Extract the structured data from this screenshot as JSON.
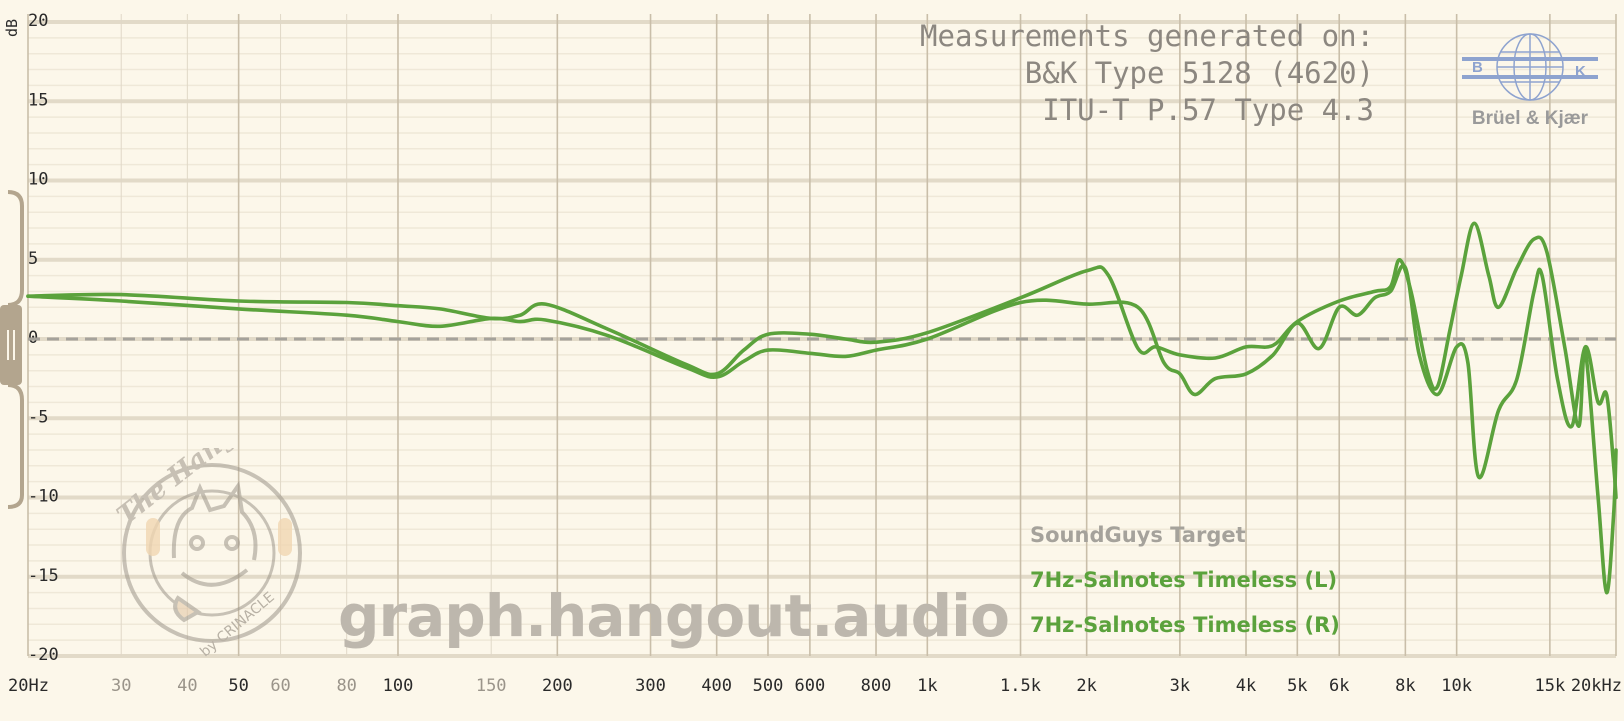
{
  "header": {
    "line1": "Measurements generated on:",
    "line2": "B&K Type 5128 (4620)",
    "line3": "ITU-T P.57 Type 4.3"
  },
  "logo": {
    "text": "Brüel & Kjær",
    "letters": [
      "B",
      "K"
    ]
  },
  "watermark": {
    "text": "graph.hangout.audio"
  },
  "badge": {
    "title": "The Hangout",
    "subtitle": "by CRINACLE"
  },
  "legend": {
    "target": "SoundGuys Target",
    "left": "7Hz-Salnotes Timeless (L)",
    "right": "7Hz-Salnotes Timeless (R)"
  },
  "colors": {
    "background": "#fcf7ea",
    "series": "#5ba23c",
    "target": "#a5a29b",
    "grid": "#d8d0bf",
    "axis_text": "#2a2a2a"
  },
  "chart_data": {
    "type": "line",
    "x_scale": "log",
    "xlim": [
      20,
      20000
    ],
    "ylim": [
      -20,
      20
    ],
    "ylabel": "dB",
    "grid": true,
    "legend_position": "bottom-right",
    "x_ticks": [
      {
        "value": 20,
        "label": "20Hz",
        "major": true
      },
      {
        "value": 30,
        "label": "30",
        "major": false
      },
      {
        "value": 40,
        "label": "40",
        "major": false
      },
      {
        "value": 50,
        "label": "50",
        "major": true
      },
      {
        "value": 60,
        "label": "60",
        "major": false
      },
      {
        "value": 80,
        "label": "80",
        "major": false
      },
      {
        "value": 100,
        "label": "100",
        "major": true
      },
      {
        "value": 150,
        "label": "150",
        "major": false
      },
      {
        "value": 200,
        "label": "200",
        "major": true
      },
      {
        "value": 300,
        "label": "300",
        "major": true
      },
      {
        "value": 400,
        "label": "400",
        "major": true
      },
      {
        "value": 500,
        "label": "500",
        "major": true
      },
      {
        "value": 600,
        "label": "600",
        "major": true
      },
      {
        "value": 800,
        "label": "800",
        "major": true
      },
      {
        "value": 1000,
        "label": "1k",
        "major": true
      },
      {
        "value": 1500,
        "label": "1.5k",
        "major": true
      },
      {
        "value": 2000,
        "label": "2k",
        "major": true
      },
      {
        "value": 3000,
        "label": "3k",
        "major": true
      },
      {
        "value": 4000,
        "label": "4k",
        "major": true
      },
      {
        "value": 5000,
        "label": "5k",
        "major": true
      },
      {
        "value": 6000,
        "label": "6k",
        "major": true
      },
      {
        "value": 8000,
        "label": "8k",
        "major": true
      },
      {
        "value": 10000,
        "label": "10k",
        "major": true
      },
      {
        "value": 15000,
        "label": "15k",
        "major": true
      },
      {
        "value": 20000,
        "label": "20kHz",
        "major": true
      }
    ],
    "y_ticks": [
      20,
      15,
      10,
      5,
      0,
      -5,
      -10,
      -15,
      -20
    ],
    "target": {
      "name": "SoundGuys Target",
      "value": 0
    },
    "series": [
      {
        "name": "7Hz-Salnotes Timeless (L)",
        "points": [
          [
            20,
            2.7
          ],
          [
            30,
            2.8
          ],
          [
            50,
            2.4
          ],
          [
            80,
            2.3
          ],
          [
            100,
            2.1
          ],
          [
            120,
            1.9
          ],
          [
            150,
            1.3
          ],
          [
            170,
            1.5
          ],
          [
            190,
            2.2
          ],
          [
            250,
            0.6
          ],
          [
            350,
            -1.6
          ],
          [
            400,
            -2.2
          ],
          [
            450,
            -0.7
          ],
          [
            500,
            0.3
          ],
          [
            600,
            0.3
          ],
          [
            700,
            0
          ],
          [
            800,
            -0.2
          ],
          [
            1000,
            0.4
          ],
          [
            1500,
            2.6
          ],
          [
            2000,
            4.3
          ],
          [
            2200,
            4.0
          ],
          [
            2500,
            -0.6
          ],
          [
            2700,
            -0.5
          ],
          [
            3000,
            -1.0
          ],
          [
            3500,
            -1.2
          ],
          [
            4000,
            -0.5
          ],
          [
            4500,
            -0.4
          ],
          [
            5000,
            1.1
          ],
          [
            6000,
            2.4
          ],
          [
            7000,
            3.0
          ],
          [
            7500,
            3.3
          ],
          [
            7800,
            5.0
          ],
          [
            8200,
            3.0
          ],
          [
            8800,
            -2.0
          ],
          [
            9200,
            -3.0
          ],
          [
            9700,
            0.5
          ],
          [
            10200,
            4.0
          ],
          [
            10800,
            7.3
          ],
          [
            11500,
            4.0
          ],
          [
            12000,
            2.0
          ],
          [
            13000,
            4.5
          ],
          [
            14000,
            6.3
          ],
          [
            14800,
            5.5
          ],
          [
            16000,
            -0.5
          ],
          [
            17000,
            -5.5
          ],
          [
            17500,
            -0.8
          ],
          [
            18500,
            -10.0
          ],
          [
            19200,
            -16.0
          ],
          [
            19800,
            -11.0
          ],
          [
            20000,
            -7.0
          ]
        ]
      },
      {
        "name": "7Hz-Salnotes Timeless (R)",
        "points": [
          [
            20,
            2.7
          ],
          [
            30,
            2.4
          ],
          [
            50,
            1.9
          ],
          [
            80,
            1.5
          ],
          [
            100,
            1.1
          ],
          [
            120,
            0.8
          ],
          [
            150,
            1.3
          ],
          [
            170,
            1.1
          ],
          [
            190,
            1.2
          ],
          [
            250,
            0.2
          ],
          [
            350,
            -1.8
          ],
          [
            400,
            -2.4
          ],
          [
            450,
            -1.4
          ],
          [
            500,
            -0.7
          ],
          [
            600,
            -0.9
          ],
          [
            700,
            -1.1
          ],
          [
            800,
            -0.7
          ],
          [
            1000,
            0
          ],
          [
            1500,
            2.3
          ],
          [
            2000,
            2.2
          ],
          [
            2500,
            2.0
          ],
          [
            2800,
            -1.5
          ],
          [
            3000,
            -2.2
          ],
          [
            3200,
            -3.5
          ],
          [
            3500,
            -2.5
          ],
          [
            4000,
            -2.2
          ],
          [
            4500,
            -1.0
          ],
          [
            5000,
            1.0
          ],
          [
            5500,
            -0.6
          ],
          [
            6000,
            2.0
          ],
          [
            6500,
            1.5
          ],
          [
            7000,
            2.6
          ],
          [
            7500,
            3.0
          ],
          [
            8000,
            4.5
          ],
          [
            8500,
            -1.0
          ],
          [
            9200,
            -3.5
          ],
          [
            10000,
            -0.5
          ],
          [
            10500,
            -1.5
          ],
          [
            11000,
            -8.7
          ],
          [
            12000,
            -4.5
          ],
          [
            13000,
            -2.5
          ],
          [
            14000,
            3.0
          ],
          [
            14500,
            4.0
          ],
          [
            15500,
            -2.5
          ],
          [
            16500,
            -5.5
          ],
          [
            17500,
            -0.5
          ],
          [
            18500,
            -4.0
          ],
          [
            19200,
            -3.5
          ],
          [
            19800,
            -8.0
          ],
          [
            20000,
            -10.0
          ]
        ]
      }
    ]
  }
}
